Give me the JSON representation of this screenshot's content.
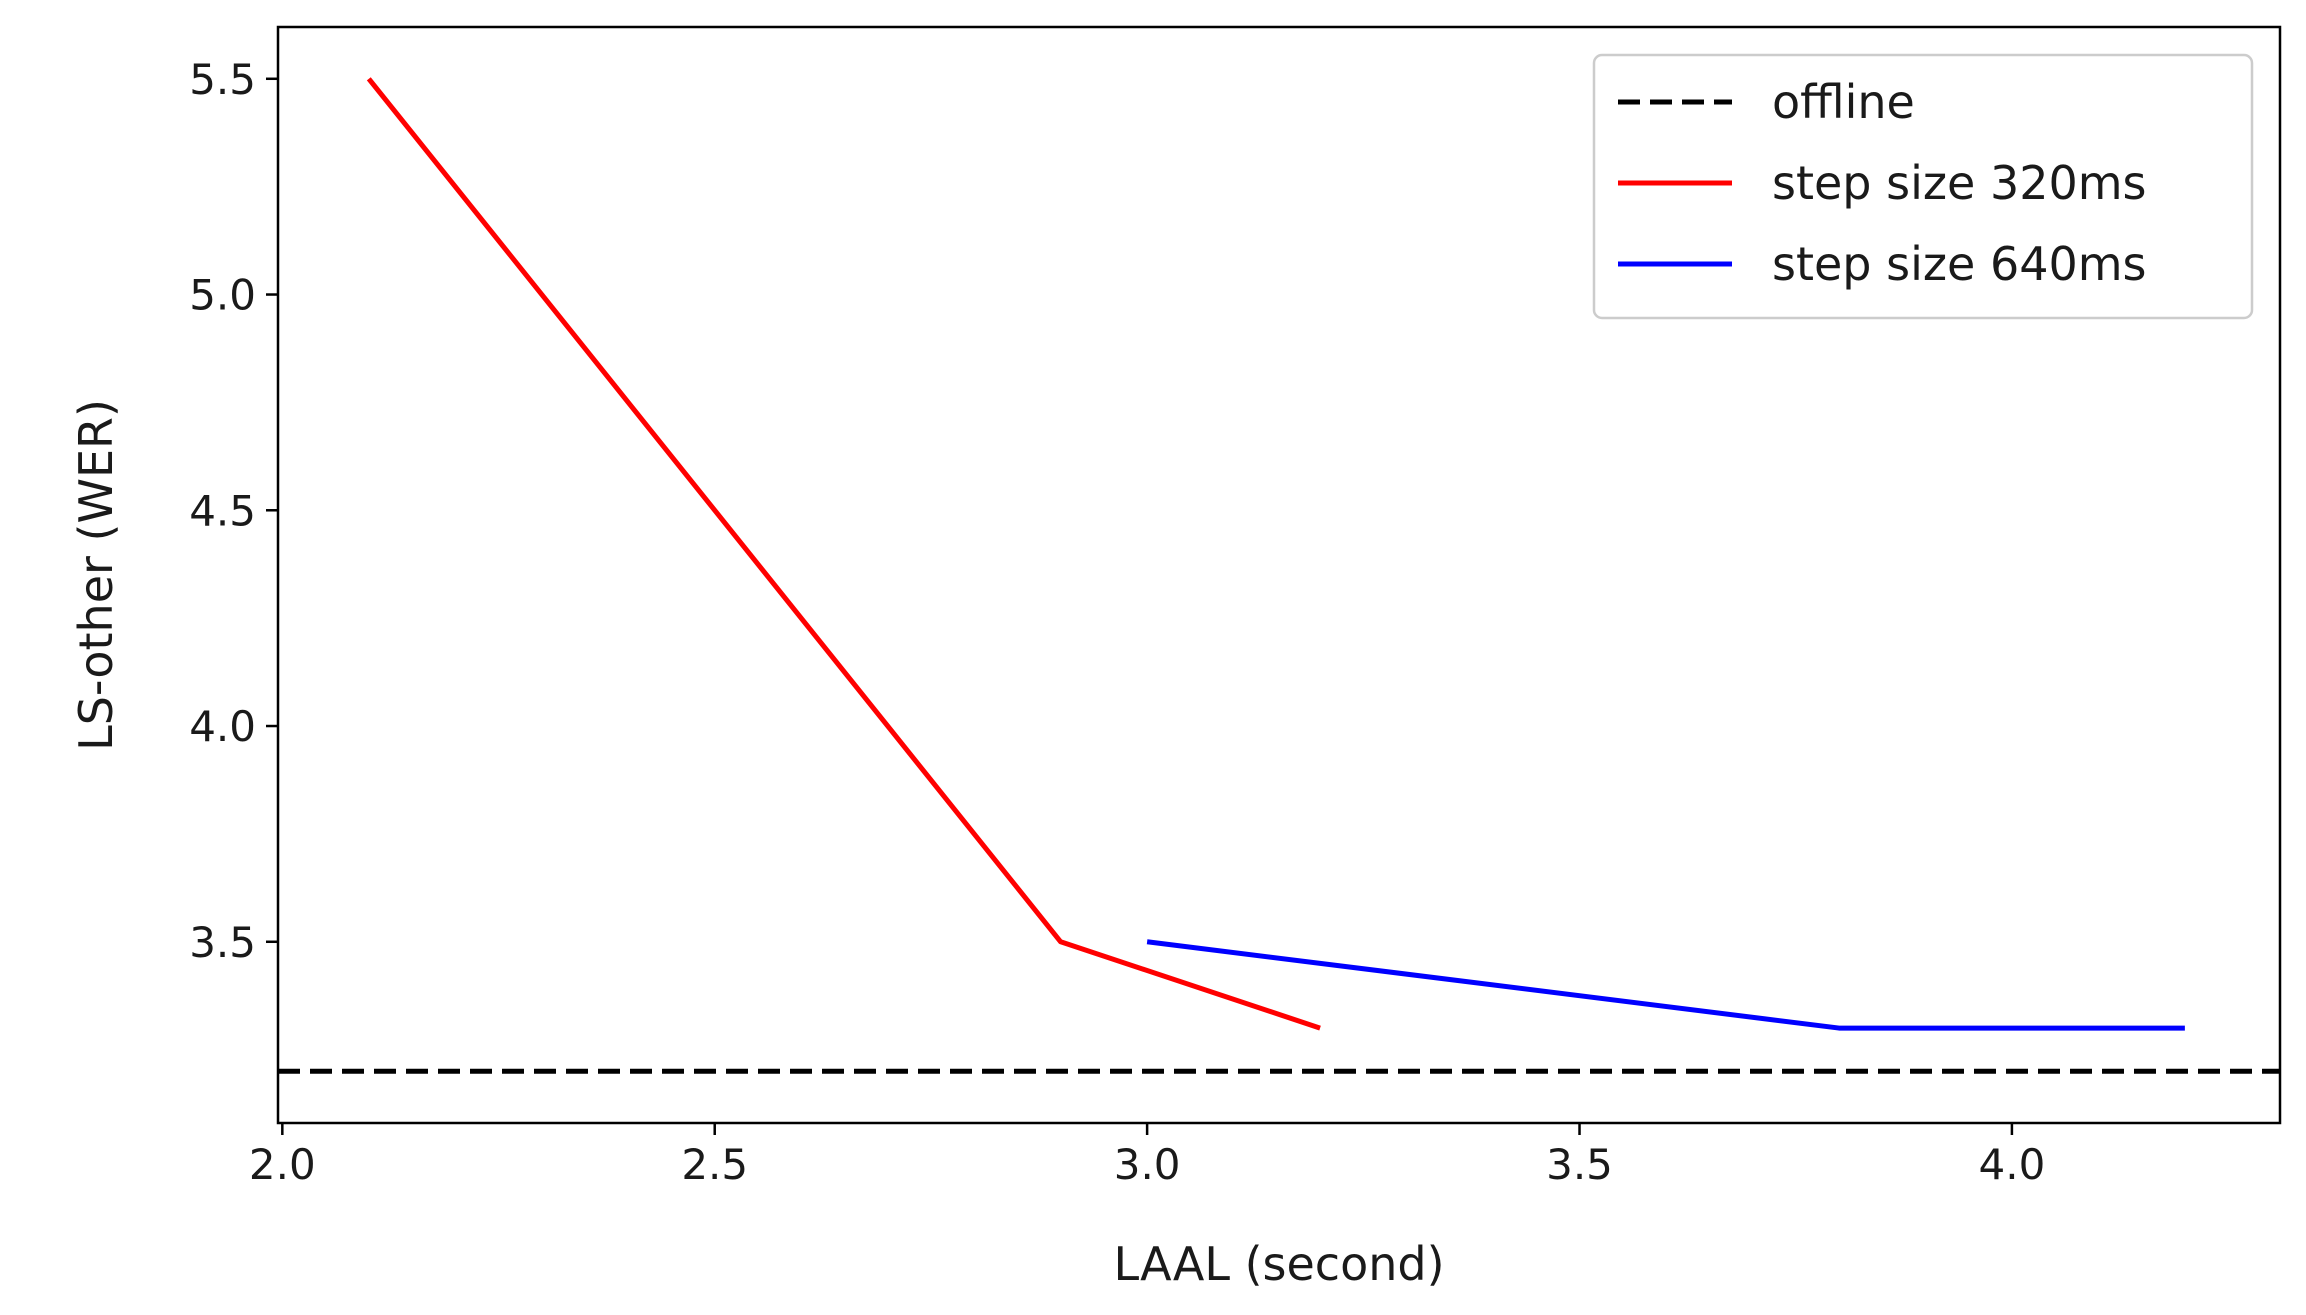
{
  "chart_data": {
    "type": "line",
    "title": "",
    "xlabel": "LAAL (second)",
    "ylabel": "LS-other (WER)",
    "xlim": [
      1.995,
      4.31
    ],
    "ylim": [
      3.08,
      5.62
    ],
    "xticks": [
      2.0,
      2.5,
      3.0,
      3.5,
      4.0
    ],
    "xtick_labels": [
      "2.0",
      "2.5",
      "3.0",
      "3.5",
      "4.0"
    ],
    "yticks": [
      3.5,
      4.0,
      4.5,
      5.0,
      5.5
    ],
    "ytick_labels": [
      "3.5",
      "4.0",
      "4.5",
      "5.0",
      "5.5"
    ],
    "grid": false,
    "legend_position": "top-right",
    "series": [
      {
        "name": "offline",
        "style": "dashed",
        "color": "#000000",
        "x": [
          1.995,
          4.31
        ],
        "y": [
          3.2,
          3.2
        ]
      },
      {
        "name": "step size 320ms",
        "style": "solid",
        "color": "#ff0000",
        "x": [
          2.1,
          2.9,
          3.2
        ],
        "y": [
          5.5,
          3.5,
          3.3
        ]
      },
      {
        "name": "step size 640ms",
        "style": "solid",
        "color": "#0000ff",
        "x": [
          3.0,
          3.8,
          4.2
        ],
        "y": [
          3.5,
          3.3,
          3.3
        ]
      }
    ]
  }
}
